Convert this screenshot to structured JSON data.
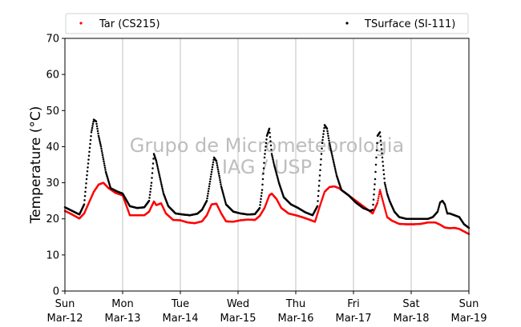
{
  "chart_data": {
    "type": "scatter",
    "title": "",
    "xlabel": "",
    "ylabel": "Temperature (°C)",
    "ylim": [
      0,
      70
    ],
    "xlim": [
      "2017-03-12 00:00",
      "2017-03-19 00:00"
    ],
    "yticks": [
      0,
      10,
      20,
      30,
      40,
      50,
      60,
      70
    ],
    "xticks": [
      {
        "day": "Sun",
        "date": "Mar-12"
      },
      {
        "day": "Mon",
        "date": "Mar-13"
      },
      {
        "day": "Tue",
        "date": "Mar-14"
      },
      {
        "day": "Wed",
        "date": "Mar-15"
      },
      {
        "day": "Thu",
        "date": "Mar-16"
      },
      {
        "day": "Fri",
        "date": "Mar-17"
      },
      {
        "day": "Sat",
        "date": "Mar-18"
      },
      {
        "day": "Sun",
        "date": "Mar-19"
      }
    ],
    "grid": "vertical",
    "legend_position": "top",
    "watermark": [
      "Grupo de Micrometeorologia",
      "IAG / USP"
    ],
    "series": [
      {
        "name": "Tar (CS215)",
        "color": "#ff0000",
        "x": [
          "2017-03-12 00:00",
          "2017-03-12 03:00",
          "2017-03-12 06:00",
          "2017-03-12 08:00",
          "2017-03-12 10:00",
          "2017-03-12 12:00",
          "2017-03-12 14:00",
          "2017-03-12 16:00",
          "2017-03-12 18:00",
          "2017-03-12 21:00",
          "2017-03-13 00:00",
          "2017-03-13 03:00",
          "2017-03-13 06:00",
          "2017-03-13 09:00",
          "2017-03-13 11:00",
          "2017-03-13 13:00",
          "2017-03-13 14:00",
          "2017-03-13 16:00",
          "2017-03-13 18:00",
          "2017-03-13 21:00",
          "2017-03-14 00:00",
          "2017-03-14 03:00",
          "2017-03-14 06:00",
          "2017-03-14 09:00",
          "2017-03-14 11:00",
          "2017-03-14 13:00",
          "2017-03-14 15:00",
          "2017-03-14 17:00",
          "2017-03-14 19:00",
          "2017-03-14 22:00",
          "2017-03-15 01:00",
          "2017-03-15 04:00",
          "2017-03-15 07:00",
          "2017-03-15 09:00",
          "2017-03-15 11:00",
          "2017-03-15 13:00",
          "2017-03-15 14:00",
          "2017-03-15 16:00",
          "2017-03-15 18:00",
          "2017-03-15 21:00",
          "2017-03-16 00:00",
          "2017-03-16 03:00",
          "2017-03-16 06:00",
          "2017-03-16 08:00",
          "2017-03-16 10:00",
          "2017-03-16 12:00",
          "2017-03-16 14:00",
          "2017-03-16 16:00",
          "2017-03-16 18:00",
          "2017-03-16 21:00",
          "2017-03-17 00:00",
          "2017-03-17 03:00",
          "2017-03-17 06:00",
          "2017-03-17 08:00",
          "2017-03-17 10:00",
          "2017-03-17 11:00",
          "2017-03-17 13:00",
          "2017-03-17 14:00",
          "2017-03-17 16:00",
          "2017-03-17 19:00",
          "2017-03-17 22:00",
          "2017-03-18 01:00",
          "2017-03-18 04:00",
          "2017-03-18 07:00",
          "2017-03-18 10:00",
          "2017-03-18 12:00",
          "2017-03-18 14:00",
          "2017-03-18 16:00",
          "2017-03-18 18:00",
          "2017-03-18 20:00",
          "2017-03-18 22:00",
          "2017-03-19 00:00"
        ],
        "y": [
          22.2,
          21.2,
          20.1,
          21.5,
          24.5,
          27.5,
          29.5,
          30,
          28.6,
          27.2,
          26.5,
          21,
          21,
          21,
          22,
          24.8,
          23.8,
          24.3,
          21.5,
          19.7,
          19.6,
          19,
          18.8,
          19.3,
          21,
          24,
          24.2,
          21.5,
          19.3,
          19.2,
          19.6,
          19.8,
          19.7,
          20.8,
          23,
          26.5,
          27,
          25.5,
          23,
          21.5,
          21,
          20.4,
          19.7,
          19.2,
          23.5,
          27.5,
          28.8,
          29,
          28.5,
          27,
          25.5,
          24,
          22.5,
          21.5,
          24.5,
          28,
          23,
          20.5,
          19.5,
          18.6,
          18.5,
          18.5,
          18.6,
          19,
          19,
          18.4,
          17.6,
          17.4,
          17.5,
          17.2,
          16.5,
          15.8
        ]
      },
      {
        "name": "TSurface (SI-111)",
        "color": "#000000",
        "x": [
          "2017-03-12 00:00",
          "2017-03-12 03:00",
          "2017-03-12 06:00",
          "2017-03-12 08:00",
          "2017-03-12 09:00",
          "2017-03-12 10:00",
          "2017-03-12 11:00",
          "2017-03-12 12:00",
          "2017-03-12 13:00",
          "2017-03-12 14:00",
          "2017-03-12 15:00",
          "2017-03-12 17:00",
          "2017-03-12 19:00",
          "2017-03-12 22:00",
          "2017-03-13 00:00",
          "2017-03-13 03:00",
          "2017-03-13 06:00",
          "2017-03-13 09:00",
          "2017-03-13 11:00",
          "2017-03-13 12:00",
          "2017-03-13 13:00",
          "2017-03-13 14:00",
          "2017-03-13 15:00",
          "2017-03-13 17:00",
          "2017-03-13 19:00",
          "2017-03-13 22:00",
          "2017-03-14 01:00",
          "2017-03-14 04:00",
          "2017-03-14 07:00",
          "2017-03-14 09:00",
          "2017-03-14 11:00",
          "2017-03-14 12:00",
          "2017-03-14 13:00",
          "2017-03-14 14:00",
          "2017-03-14 15:00",
          "2017-03-14 17:00",
          "2017-03-14 19:00",
          "2017-03-14 22:00",
          "2017-03-15 01:00",
          "2017-03-15 04:00",
          "2017-03-15 07:00",
          "2017-03-15 09:00",
          "2017-03-15 10:00",
          "2017-03-15 11:00",
          "2017-03-15 12:00",
          "2017-03-15 13:00",
          "2017-03-15 14:00",
          "2017-03-15 15:00",
          "2017-03-15 17:00",
          "2017-03-15 19:00",
          "2017-03-15 22:00",
          "2017-03-16 01:00",
          "2017-03-16 04:00",
          "2017-03-16 07:00",
          "2017-03-16 09:00",
          "2017-03-16 10:00",
          "2017-03-16 11:00",
          "2017-03-16 12:00",
          "2017-03-16 13:00",
          "2017-03-16 14:00",
          "2017-03-16 15:00",
          "2017-03-16 17:00",
          "2017-03-16 19:00",
          "2017-03-16 22:00",
          "2017-03-17 01:00",
          "2017-03-17 04:00",
          "2017-03-17 07:00",
          "2017-03-17 08:00",
          "2017-03-17 09:00",
          "2017-03-17 10:00",
          "2017-03-17 11:00",
          "2017-03-17 12:00",
          "2017-03-17 13:00",
          "2017-03-17 14:00",
          "2017-03-17 15:00",
          "2017-03-17 17:00",
          "2017-03-17 19:00",
          "2017-03-17 22:00",
          "2017-03-18 01:00",
          "2017-03-18 04:00",
          "2017-03-18 07:00",
          "2017-03-18 09:00",
          "2017-03-18 11:00",
          "2017-03-18 12:00",
          "2017-03-18 13:00",
          "2017-03-18 14:00",
          "2017-03-18 15:00",
          "2017-03-18 16:00",
          "2017-03-18 18:00",
          "2017-03-18 20:00",
          "2017-03-18 22:00",
          "2017-03-19 00:00"
        ],
        "y": [
          23.2,
          22.2,
          21.2,
          24,
          31,
          37.5,
          44,
          47.5,
          47,
          43,
          40,
          33,
          28.5,
          27.5,
          27,
          23.5,
          23,
          23.2,
          25,
          30,
          38,
          36,
          33,
          27,
          23.5,
          21.5,
          21.2,
          21,
          21.4,
          22.5,
          25,
          29,
          33,
          37,
          36,
          29,
          24,
          22,
          21.5,
          21.2,
          21.3,
          23,
          28,
          37,
          43,
          45,
          38,
          35,
          30,
          26,
          24,
          23,
          21.8,
          21,
          23.5,
          32,
          41,
          46,
          45,
          41,
          38,
          32,
          28,
          26.5,
          24.5,
          23,
          22.2,
          22.5,
          31,
          43,
          44,
          37,
          30,
          27,
          25,
          22,
          20.5,
          20,
          20,
          20,
          20,
          20.5,
          22,
          24.5,
          25,
          24,
          21.5,
          21.5,
          21,
          20.5,
          18.5,
          17.5
        ]
      }
    ]
  }
}
